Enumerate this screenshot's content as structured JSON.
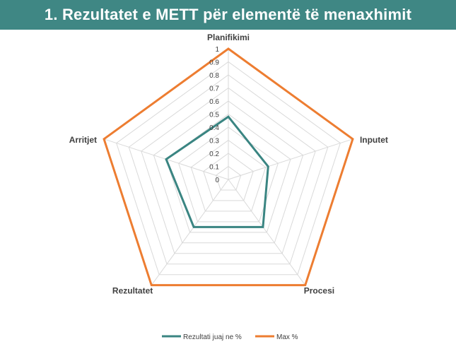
{
  "chart_data": {
    "type": "radar",
    "title": "1. Rezultatet e METT për elementë të menaxhimit",
    "categories": [
      "Planifikimi",
      "Inputet",
      "Procesi",
      "Rezultatet",
      "Arritjet"
    ],
    "series": [
      {
        "name": "Rezultati juaj ne %",
        "values": [
          0.48,
          0.32,
          0.45,
          0.45,
          0.5
        ],
        "color": "#3a8582"
      },
      {
        "name": "Max %",
        "values": [
          1,
          1,
          1,
          1,
          1
        ],
        "color": "#ed7d31"
      }
    ],
    "rlim": [
      0,
      1
    ],
    "ticks": [
      "0",
      "0.1",
      "0.2",
      "0.3",
      "0.4",
      "0.5",
      "0.6",
      "0.7",
      "0.8",
      "0.9",
      "1"
    ],
    "tick_values": [
      0,
      0.1,
      0.2,
      0.3,
      0.4,
      0.5,
      0.6,
      0.7,
      0.8,
      0.9,
      1
    ],
    "grid": true,
    "legend_position": "bottom"
  }
}
